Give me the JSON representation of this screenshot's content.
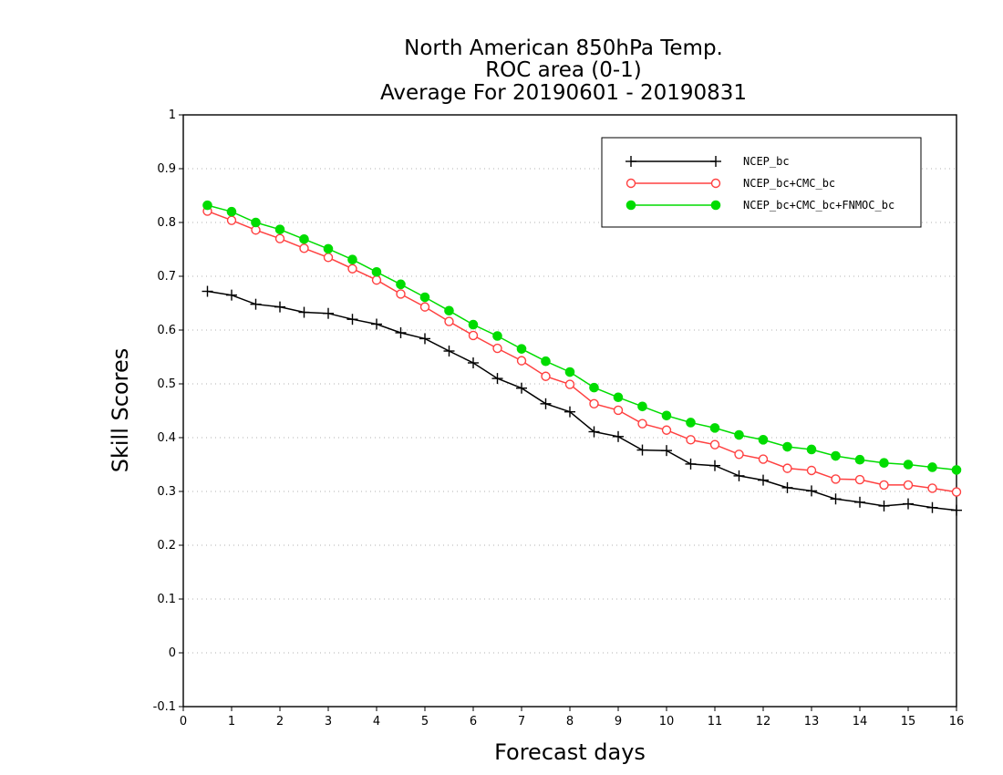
{
  "chart_data": {
    "type": "line",
    "title_lines": [
      "North American 850hPa Temp.",
      "ROC area (0-1)",
      "Average For 20190601 - 20190831"
    ],
    "xlabel": "Forecast days",
    "ylabel": "Skill Scores",
    "xlim": [
      0,
      16
    ],
    "ylim": [
      -0.1,
      1
    ],
    "xticks": [
      0,
      1,
      2,
      3,
      4,
      5,
      6,
      7,
      8,
      9,
      10,
      11,
      12,
      13,
      14,
      15,
      16
    ],
    "yticks": [
      -0.1,
      0,
      0.1,
      0.2,
      0.3,
      0.4,
      0.5,
      0.6,
      0.7,
      0.8,
      0.9,
      1
    ],
    "ytick_labels": [
      "-0.1",
      "0",
      "0.1",
      "0.2",
      "0.3",
      "0.4",
      "0.5",
      "0.6",
      "0.7",
      "0.8",
      "0.9",
      "1"
    ],
    "grid": "horizontal dotted",
    "legend_position": "top-right",
    "x": [
      0.5,
      1.0,
      1.5,
      2.0,
      2.5,
      3.0,
      3.5,
      4.0,
      4.5,
      5.0,
      5.5,
      6.0,
      6.5,
      7.0,
      7.5,
      8.0,
      8.5,
      9.0,
      9.5,
      10.0,
      10.5,
      11.0,
      11.5,
      12.0,
      12.5,
      13.0,
      13.5,
      14.0,
      14.5,
      15.0,
      15.5,
      16.0
    ],
    "series": [
      {
        "name": "NCEP_bc",
        "color": "#000000",
        "marker": "plus",
        "values": [
          0.672,
          0.665,
          0.648,
          0.643,
          0.633,
          0.631,
          0.62,
          0.611,
          0.595,
          0.584,
          0.561,
          0.539,
          0.51,
          0.492,
          0.463,
          0.448,
          0.411,
          0.402,
          0.377,
          0.376,
          0.351,
          0.348,
          0.329,
          0.321,
          0.307,
          0.301,
          0.286,
          0.28,
          0.273,
          0.277,
          0.27,
          0.265
        ]
      },
      {
        "name": "NCEP_bc+CMC_bc",
        "color": "#ff4040",
        "marker": "open-circle",
        "values": [
          0.821,
          0.804,
          0.786,
          0.77,
          0.752,
          0.735,
          0.714,
          0.693,
          0.667,
          0.643,
          0.616,
          0.59,
          0.566,
          0.543,
          0.514,
          0.499,
          0.463,
          0.451,
          0.426,
          0.414,
          0.396,
          0.387,
          0.369,
          0.36,
          0.343,
          0.339,
          0.323,
          0.322,
          0.312,
          0.312,
          0.306,
          0.299
        ]
      },
      {
        "name": "NCEP_bc+CMC_bc+FNMOC_bc",
        "color": "#00dc00",
        "marker": "filled-circle",
        "values": [
          0.832,
          0.82,
          0.8,
          0.787,
          0.769,
          0.751,
          0.731,
          0.708,
          0.685,
          0.661,
          0.636,
          0.61,
          0.589,
          0.565,
          0.542,
          0.522,
          0.493,
          0.475,
          0.458,
          0.441,
          0.428,
          0.418,
          0.405,
          0.396,
          0.383,
          0.378,
          0.366,
          0.359,
          0.353,
          0.35,
          0.345,
          0.34
        ]
      }
    ]
  }
}
